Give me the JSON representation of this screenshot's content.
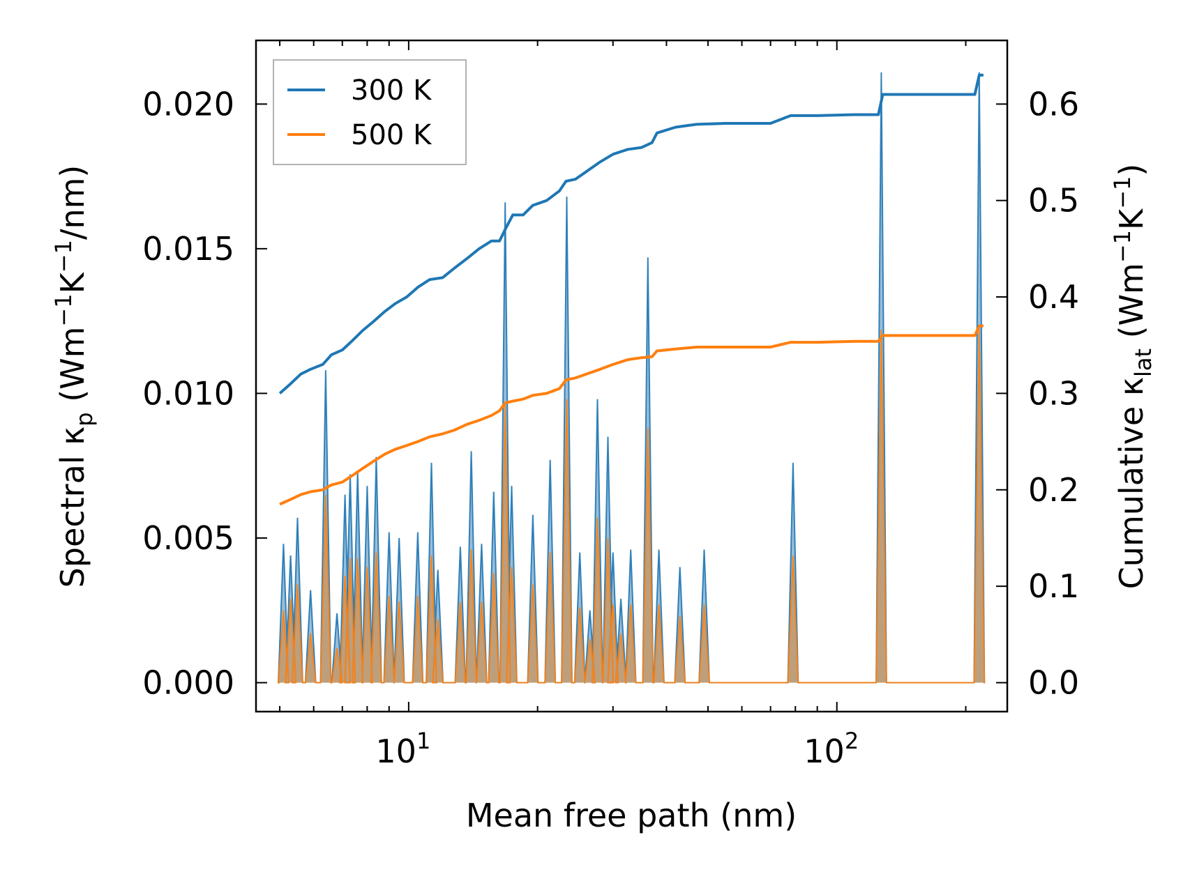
{
  "chart_data": {
    "type": "line",
    "xscale": "log",
    "xlabel": "Mean free path (nm)",
    "ylabel_left_parts": [
      "Spectral κ",
      "p",
      " (Wm",
      "−1",
      "K",
      "−1",
      "/nm)"
    ],
    "ylabel_right_parts": [
      "Cumulative κ",
      "lat",
      " (Wm",
      "−1",
      "K",
      "−1",
      ")"
    ],
    "xlim": [
      4.4,
      250
    ],
    "ylim_left": [
      -0.001,
      0.0222
    ],
    "ylim_right": [
      -0.03,
      0.666
    ],
    "x_tick_labels": [
      {
        "value": 10,
        "base": "10",
        "exp": "1"
      },
      {
        "value": 100,
        "base": "10",
        "exp": "2"
      }
    ],
    "y_left_ticks": [
      0.0,
      0.005,
      0.01,
      0.015,
      0.02
    ],
    "y_left_tick_labels": [
      "0.000",
      "0.005",
      "0.010",
      "0.015",
      "0.020"
    ],
    "y_right_ticks": [
      0.0,
      0.1,
      0.2,
      0.3,
      0.4,
      0.5,
      0.6
    ],
    "y_right_tick_labels": [
      "0.0",
      "0.1",
      "0.2",
      "0.3",
      "0.4",
      "0.5",
      "0.6"
    ],
    "legend": {
      "location": "upper-left",
      "entries": [
        {
          "label": "300 K",
          "color": "#1f77b4"
        },
        {
          "label": "500 K",
          "color": "#ff7f0e"
        }
      ]
    },
    "colors": {
      "300K": "#1f77b4",
      "500K": "#ff7f0e",
      "fill300": "#7aa7c9",
      "fill500": "#c49a6c"
    },
    "cumulative_series": [
      {
        "name": "300 K",
        "x": [
          5.0,
          5.3,
          5.6,
          5.9,
          6.3,
          6.6,
          7.0,
          7.4,
          7.8,
          8.3,
          8.8,
          9.3,
          9.9,
          10.5,
          11.2,
          12.0,
          12.8,
          13.7,
          14.6,
          15.6,
          16.3,
          16.8,
          17.5,
          18.5,
          19.5,
          21.0,
          22.5,
          23.3,
          24.5,
          26.0,
          28.0,
          30.0,
          32.5,
          35.0,
          37.0,
          38.0,
          42.0,
          47.0,
          55.0,
          70.0,
          78.0,
          90.0,
          110.0,
          125.0,
          128.0,
          150.0,
          180.0,
          210.0,
          215.0,
          220.0
        ],
        "y": [
          0.3,
          0.31,
          0.32,
          0.325,
          0.33,
          0.34,
          0.345,
          0.355,
          0.365,
          0.375,
          0.385,
          0.393,
          0.4,
          0.41,
          0.418,
          0.42,
          0.43,
          0.44,
          0.45,
          0.458,
          0.458,
          0.47,
          0.485,
          0.485,
          0.495,
          0.5,
          0.51,
          0.52,
          0.522,
          0.53,
          0.54,
          0.548,
          0.553,
          0.555,
          0.56,
          0.57,
          0.576,
          0.579,
          0.58,
          0.58,
          0.588,
          0.588,
          0.589,
          0.589,
          0.61,
          0.61,
          0.61,
          0.61,
          0.63,
          0.63
        ]
      },
      {
        "name": "500 K",
        "x": [
          5.0,
          5.3,
          5.6,
          5.9,
          6.3,
          6.6,
          7.0,
          7.4,
          7.8,
          8.3,
          8.8,
          9.3,
          9.9,
          10.5,
          11.2,
          12.0,
          12.8,
          13.7,
          14.6,
          15.6,
          16.3,
          16.8,
          17.5,
          18.5,
          19.5,
          21.0,
          22.5,
          23.3,
          24.5,
          26.0,
          28.0,
          30.0,
          32.5,
          35.0,
          37.0,
          38.0,
          42.0,
          47.0,
          55.0,
          70.0,
          78.0,
          90.0,
          110.0,
          125.0,
          128.0,
          150.0,
          180.0,
          210.0,
          215.0,
          220.0
        ],
        "y": [
          0.185,
          0.19,
          0.195,
          0.198,
          0.2,
          0.205,
          0.208,
          0.215,
          0.222,
          0.23,
          0.237,
          0.242,
          0.246,
          0.25,
          0.255,
          0.258,
          0.262,
          0.268,
          0.272,
          0.277,
          0.282,
          0.29,
          0.292,
          0.294,
          0.298,
          0.3,
          0.305,
          0.314,
          0.316,
          0.32,
          0.325,
          0.33,
          0.335,
          0.337,
          0.338,
          0.344,
          0.346,
          0.348,
          0.348,
          0.348,
          0.353,
          0.353,
          0.354,
          0.354,
          0.36,
          0.36,
          0.36,
          0.36,
          0.37,
          0.37
        ]
      }
    ],
    "spectral_series": [
      {
        "name": "300 K",
        "peaks": [
          [
            5.1,
            0.0048
          ],
          [
            5.3,
            0.0044
          ],
          [
            5.5,
            0.0057
          ],
          [
            5.9,
            0.0032
          ],
          [
            6.4,
            0.0108
          ],
          [
            6.8,
            0.0024
          ],
          [
            7.1,
            0.0065
          ],
          [
            7.3,
            0.0072
          ],
          [
            7.6,
            0.0073
          ],
          [
            8.0,
            0.0068
          ],
          [
            8.4,
            0.0078
          ],
          [
            9.0,
            0.0052
          ],
          [
            9.5,
            0.005
          ],
          [
            10.5,
            0.0052
          ],
          [
            11.3,
            0.0076
          ],
          [
            11.7,
            0.0039
          ],
          [
            13.2,
            0.0047
          ],
          [
            14.0,
            0.008
          ],
          [
            14.8,
            0.0048
          ],
          [
            15.8,
            0.0066
          ],
          [
            16.8,
            0.0166
          ],
          [
            17.4,
            0.0068
          ],
          [
            19.5,
            0.0058
          ],
          [
            21.4,
            0.0077
          ],
          [
            23.4,
            0.0168
          ],
          [
            25.1,
            0.0045
          ],
          [
            26.5,
            0.0025
          ],
          [
            27.6,
            0.0098
          ],
          [
            29.2,
            0.0085
          ],
          [
            30.0,
            0.0045
          ],
          [
            31.3,
            0.0029
          ],
          [
            33.0,
            0.0046
          ],
          [
            36.2,
            0.0147
          ],
          [
            38.4,
            0.0046
          ],
          [
            43.0,
            0.004
          ],
          [
            49.0,
            0.0046
          ],
          [
            79.0,
            0.0076
          ],
          [
            127.0,
            0.0211
          ],
          [
            215.0,
            0.0211
          ]
        ]
      },
      {
        "name": "500 K",
        "peaks": [
          [
            5.1,
            0.0025
          ],
          [
            5.3,
            0.0029
          ],
          [
            5.5,
            0.0034
          ],
          [
            5.9,
            0.0017
          ],
          [
            6.4,
            0.0065
          ],
          [
            6.8,
            0.0012
          ],
          [
            7.1,
            0.0037
          ],
          [
            7.3,
            0.0043
          ],
          [
            7.6,
            0.0043
          ],
          [
            8.0,
            0.004
          ],
          [
            8.4,
            0.0045
          ],
          [
            9.0,
            0.003
          ],
          [
            9.5,
            0.0028
          ],
          [
            10.5,
            0.003
          ],
          [
            11.3,
            0.0044
          ],
          [
            11.7,
            0.0022
          ],
          [
            13.2,
            0.0028
          ],
          [
            14.0,
            0.0046
          ],
          [
            14.8,
            0.0028
          ],
          [
            15.8,
            0.0038
          ],
          [
            16.8,
            0.0096
          ],
          [
            17.4,
            0.004
          ],
          [
            19.5,
            0.0034
          ],
          [
            21.4,
            0.0045
          ],
          [
            23.4,
            0.0098
          ],
          [
            25.1,
            0.0026
          ],
          [
            26.5,
            0.0015
          ],
          [
            27.6,
            0.0057
          ],
          [
            29.2,
            0.005
          ],
          [
            30.0,
            0.0027
          ],
          [
            31.3,
            0.0017
          ],
          [
            33.0,
            0.0027
          ],
          [
            36.2,
            0.0088
          ],
          [
            38.4,
            0.0027
          ],
          [
            43.0,
            0.0023
          ],
          [
            49.0,
            0.0027
          ],
          [
            79.0,
            0.0044
          ],
          [
            127.0,
            0.0122
          ],
          [
            215.0,
            0.0122
          ]
        ]
      }
    ]
  }
}
